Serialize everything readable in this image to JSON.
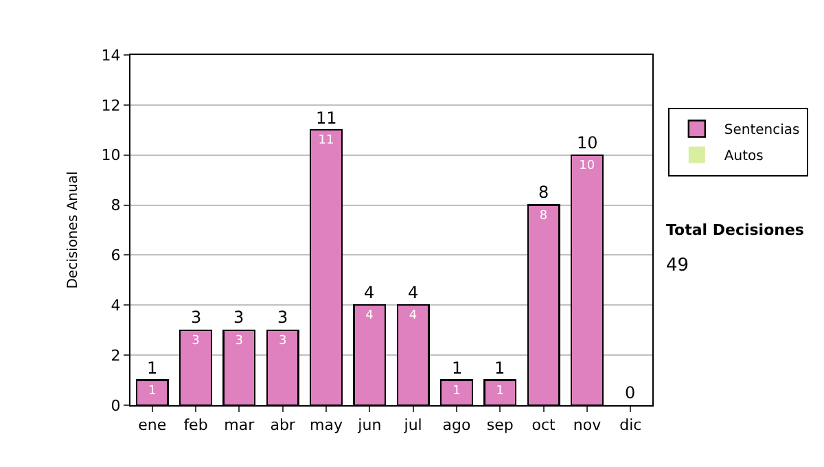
{
  "chart_data": {
    "type": "bar",
    "stacked": true,
    "ylabel": "Decisiones Anual",
    "categories": [
      "ene",
      "feb",
      "mar",
      "abr",
      "may",
      "jun",
      "jul",
      "ago",
      "sep",
      "oct",
      "nov",
      "dic"
    ],
    "series": [
      {
        "name": "Sentencias",
        "color": "#df80bf",
        "values": [
          1,
          3,
          3,
          3,
          11,
          4,
          4,
          1,
          1,
          8,
          10,
          0
        ],
        "value_labels": [
          "1",
          "3",
          "3",
          "3",
          "11",
          "4",
          "4",
          "1",
          "1",
          "8",
          "10",
          null
        ]
      },
      {
        "name": "Autos",
        "color": "#d8eea0",
        "values": [
          null,
          null,
          null,
          null,
          null,
          null,
          null,
          null,
          null,
          null,
          null,
          null
        ]
      }
    ],
    "totals": [
      "1",
      "3",
      "3",
      "3",
      "11",
      "4",
      "4",
      "1",
      "1",
      "8",
      "10",
      "0"
    ],
    "ylim": [
      0,
      14
    ],
    "yticks": [
      0,
      2,
      4,
      6,
      8,
      10,
      12,
      14
    ],
    "grid": "y",
    "legend": "right",
    "annotations": [
      "Total Decisiones",
      "49"
    ]
  }
}
